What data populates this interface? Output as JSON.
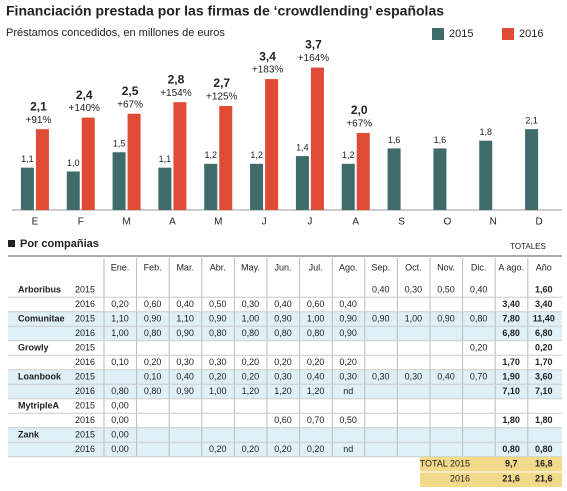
{
  "chart_data": {
    "type": "bar",
    "title": "Financiación prestada por las firmas de ‘crowdlending’ españolas",
    "subtitle": "Préstamos concedidos, en millones de euros",
    "categories": [
      "E",
      "F",
      "M",
      "A",
      "M",
      "J",
      "J",
      "A",
      "S",
      "O",
      "N",
      "D"
    ],
    "ylim": [
      0,
      4
    ],
    "legend": "top-right",
    "series": [
      {
        "name": "2015",
        "color": "#3f6b6b",
        "values": [
          1.1,
          1.0,
          1.5,
          1.1,
          1.2,
          1.2,
          1.4,
          1.2,
          1.6,
          1.6,
          1.8,
          2.1
        ],
        "value_labels": [
          "1,1",
          "1,0",
          "1,5",
          "1,1",
          "1,2",
          "1,2",
          "1,4",
          "1,2",
          "1,6",
          "1,6",
          "1,8",
          "2,1"
        ]
      },
      {
        "name": "2016",
        "color": "#e04b35",
        "values": [
          2.1,
          2.4,
          2.5,
          2.8,
          2.7,
          3.4,
          3.7,
          2.0,
          null,
          null,
          null,
          null
        ],
        "value_labels": [
          "2,1",
          "2,4",
          "2,5",
          "2,8",
          "2,7",
          "3,4",
          "3,7",
          "2,0",
          null,
          null,
          null,
          null
        ],
        "annotations": [
          "+91%",
          "+140%",
          "+67%",
          "+154%",
          "+125%",
          "+183%",
          "+164%",
          "+67%",
          null,
          null,
          null,
          null
        ]
      }
    ]
  },
  "table": {
    "title": "Por compañias",
    "totals_header": "TOTALES",
    "columns": [
      "Ene.",
      "Feb.",
      "Mar.",
      "Abr.",
      "May.",
      "Jun.",
      "Jul.",
      "Ago.",
      "Sep.",
      "Oct.",
      "Nov.",
      "Dic.",
      "A ago.",
      "Año"
    ],
    "rows": [
      [
        "Arboribus",
        "2015",
        null,
        null,
        null,
        null,
        null,
        null,
        null,
        null,
        "0,40",
        "0,30",
        "0,50",
        "0,40",
        null,
        "1,60"
      ],
      [
        null,
        "2016",
        "0,20",
        "0,60",
        "0,40",
        "0,50",
        "0,30",
        "0,40",
        "0,60",
        "0,40",
        null,
        null,
        null,
        null,
        "3,40",
        "3,40"
      ],
      [
        "Comunitae",
        "2015",
        "1,10",
        "0,90",
        "1,10",
        "0,90",
        "1,00",
        "0,90",
        "1,00",
        "0,90",
        "0,90",
        "1,00",
        "0,90",
        "0,80",
        "7,80",
        "11,40"
      ],
      [
        null,
        "2016",
        "1,00",
        "0,80",
        "0,90",
        "0,80",
        "0,80",
        "0,80",
        "0,80",
        "0,90",
        null,
        null,
        null,
        null,
        "6,80",
        "6,80"
      ],
      [
        "Growly",
        "2015",
        null,
        null,
        null,
        null,
        null,
        null,
        null,
        null,
        null,
        null,
        null,
        "0,20",
        null,
        "0,20"
      ],
      [
        null,
        "2016",
        "0,10",
        "0,20",
        "0,30",
        "0,30",
        "0,20",
        "0,20",
        "0,20",
        "0,20",
        null,
        null,
        null,
        null,
        "1,70",
        "1,70"
      ],
      [
        "Loanbook",
        "2015",
        null,
        "0,10",
        "0,40",
        "0,20",
        "0,20",
        "0,30",
        "0,40",
        "0,30",
        "0,30",
        "0,30",
        "0,40",
        "0,70",
        "1,90",
        "3,60"
      ],
      [
        null,
        "2016",
        "0,80",
        "0,80",
        "0,90",
        "1,00",
        "1,20",
        "1,20",
        "1,20",
        "nd",
        null,
        null,
        null,
        null,
        "7,10",
        "7,10"
      ],
      [
        "MytripleA",
        "2015",
        "0,00",
        null,
        null,
        null,
        null,
        null,
        null,
        null,
        null,
        null,
        null,
        null,
        null,
        null
      ],
      [
        null,
        "2016",
        "0,00",
        null,
        null,
        null,
        null,
        "0,60",
        "0,70",
        "0,50",
        null,
        null,
        null,
        null,
        "1,80",
        "1,80"
      ],
      [
        "Zank",
        "2015",
        "0,00",
        null,
        null,
        null,
        null,
        null,
        null,
        null,
        null,
        null,
        null,
        null,
        null,
        null
      ],
      [
        null,
        "2016",
        "0,00",
        null,
        null,
        "0,20",
        "0,20",
        "0,20",
        "0,20",
        "nd",
        null,
        null,
        null,
        null,
        "0,80",
        "0,80"
      ]
    ],
    "totals": [
      [
        "TOTAL 2015",
        "9,7",
        "16,8"
      ],
      [
        "2016",
        "21,6",
        "21,6"
      ]
    ]
  }
}
